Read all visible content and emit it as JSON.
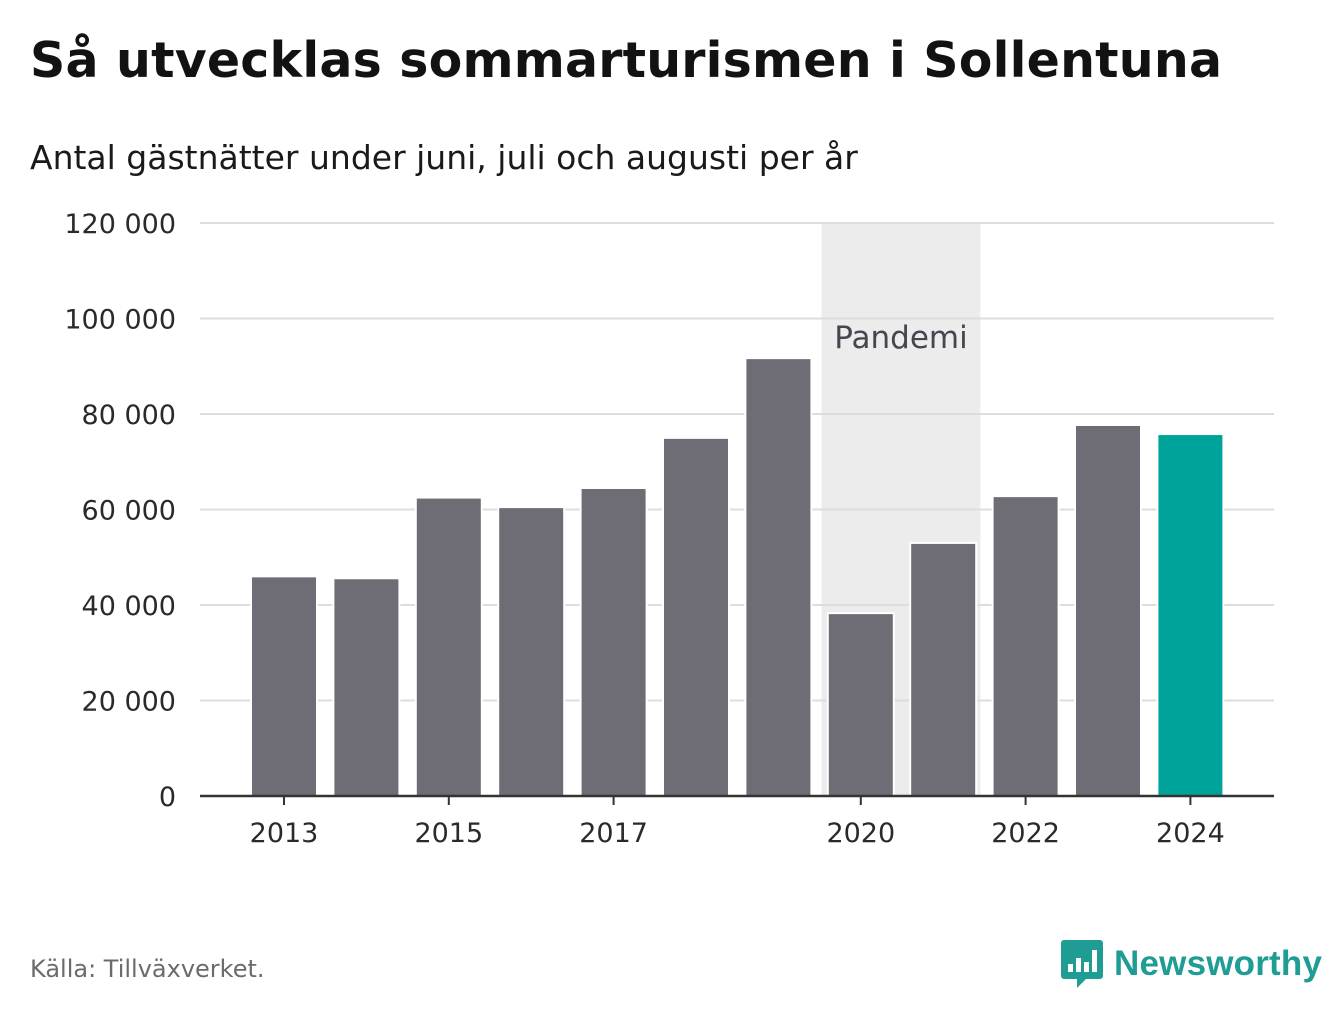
{
  "title": "Så utvecklas sommarturismen i Sollentuna",
  "subtitle": "Antal gästnätter under juni, juli och augusti per år",
  "source": "Källa: Tillväxverket.",
  "brand": {
    "name": "Newsworthy",
    "icon": "newsworthy-logo-icon",
    "color": "#1f9d95"
  },
  "chart_data": {
    "type": "bar",
    "categories": [
      2013,
      2014,
      2015,
      2016,
      2017,
      2018,
      2019,
      2020,
      2021,
      2022,
      2023,
      2024
    ],
    "values": [
      46000,
      45600,
      62500,
      60500,
      64500,
      75000,
      91700,
      38300,
      53000,
      62800,
      77700,
      75800
    ],
    "highlight_category": 2024,
    "colors": {
      "bar": "#6e6d75",
      "highlight": "#00a39a",
      "shade": "#ececec",
      "grid": "#dddddd",
      "axis": "#333333"
    },
    "ylim": [
      0,
      120000
    ],
    "yticks": [
      0,
      20000,
      40000,
      60000,
      80000,
      100000,
      120000
    ],
    "ytick_labels": [
      "0",
      "20 000",
      "40 000",
      "60 000",
      "80 000",
      "100 000",
      "120 000"
    ],
    "xticks": [
      2013,
      2015,
      2017,
      2020,
      2022,
      2024
    ],
    "xtick_labels": [
      "2013",
      "2015",
      "2017",
      "2020",
      "2022",
      "2024"
    ],
    "xlabel": "",
    "ylabel": "",
    "grid": true,
    "annotation": {
      "label": "Pandemi",
      "from": 2020,
      "to": 2021
    }
  }
}
